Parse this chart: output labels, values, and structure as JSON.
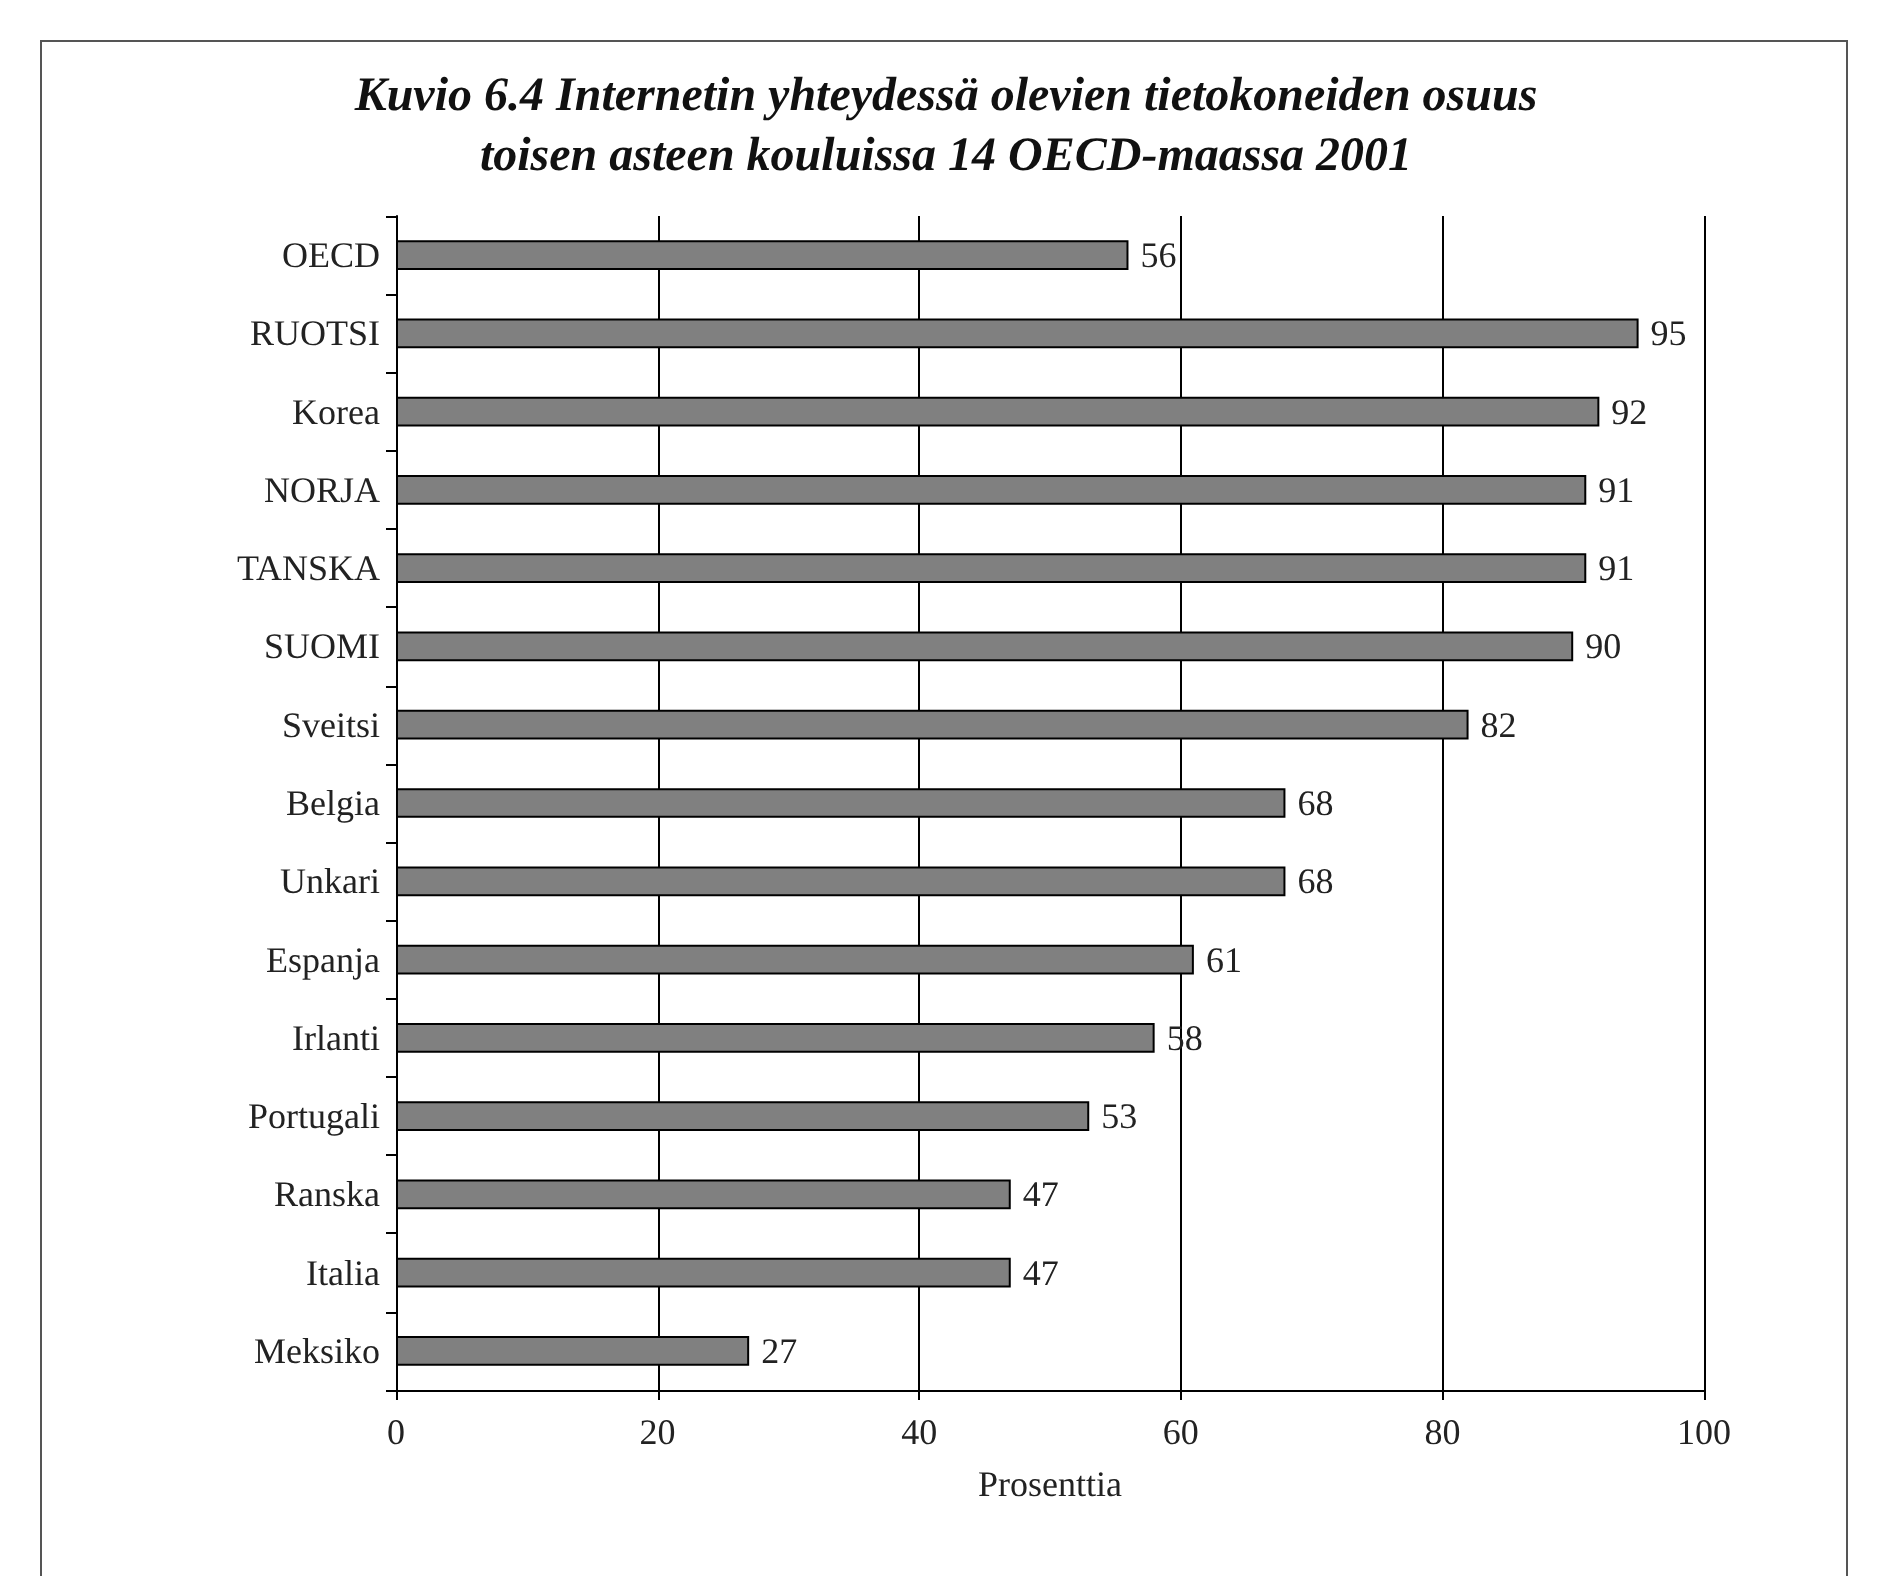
{
  "chart_data": {
    "type": "bar",
    "orientation": "horizontal",
    "title": "Kuvio 6.4 Internetin yhteydessä olevien tietokoneiden osuus\ntoisen asteen kouluissa 14 OECD-maassa 2001",
    "categories": [
      "OECD",
      "RUOTSI",
      "Korea",
      "NORJA",
      "TANSKA",
      "SUOMI",
      "Sveitsi",
      "Belgia",
      "Unkari",
      "Espanja",
      "Irlanti",
      "Portugali",
      "Ranska",
      "Italia",
      "Meksiko"
    ],
    "values": [
      56,
      95,
      92,
      91,
      91,
      90,
      82,
      68,
      68,
      61,
      58,
      53,
      47,
      47,
      27
    ],
    "color": "#808080",
    "xlim": [
      0,
      100
    ],
    "xticks": [
      0,
      20,
      40,
      60,
      80,
      100
    ],
    "xlabel": "Prosenttia",
    "grid": "x",
    "data_labels": true
  }
}
